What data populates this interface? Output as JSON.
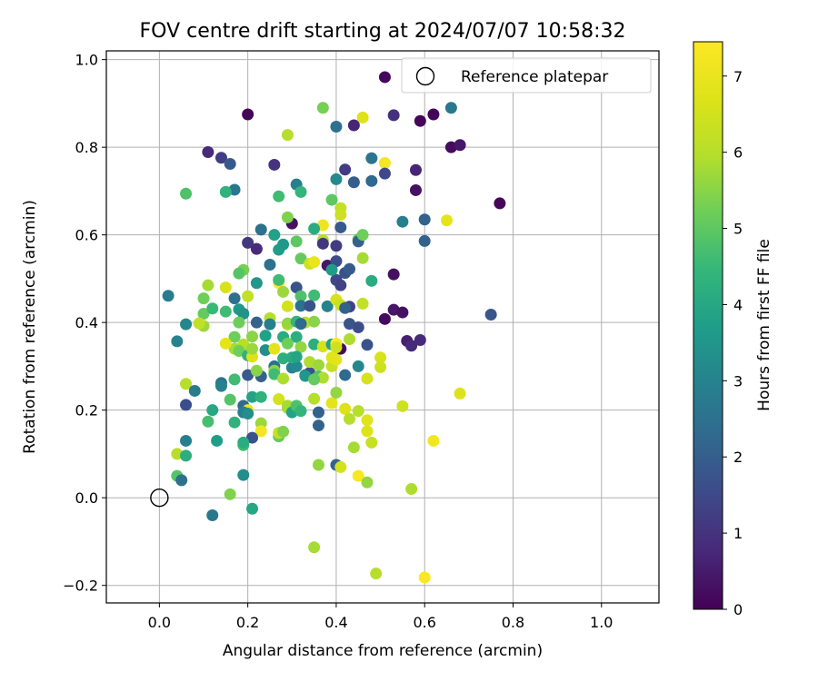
{
  "chart_data": {
    "type": "scatter",
    "title": "FOV centre drift starting at 2024/07/07 10:58:32",
    "xlabel": "Angular distance from reference (arcmin)",
    "ylabel": "Rotation from reference (arcmin)",
    "xlim": [
      -0.12,
      1.13
    ],
    "ylim": [
      -0.24,
      1.02
    ],
    "xticks": [
      0.0,
      0.2,
      0.4,
      0.6,
      0.8,
      1.0
    ],
    "xtick_labels": [
      "0.0",
      "0.2",
      "0.4",
      "0.6",
      "0.8",
      "1.0"
    ],
    "yticks": [
      -0.2,
      0.0,
      0.2,
      0.4,
      0.6,
      0.8,
      1.0
    ],
    "ytick_labels": [
      "−0.2",
      "0.0",
      "0.2",
      "0.4",
      "0.6",
      "0.8",
      "1.0"
    ],
    "grid": true,
    "legend": {
      "placement": "top-right",
      "label": "Reference platepar"
    },
    "reference_point": {
      "x": 0.0,
      "y": 0.0
    },
    "colorbar": {
      "label": "Hours from first FF file",
      "colormap": "viridis",
      "range": [
        0,
        7.45
      ],
      "ticks": [
        0,
        1,
        2,
        3,
        4,
        5,
        6,
        7
      ],
      "tick_labels": [
        "0",
        "1",
        "2",
        "3",
        "4",
        "5",
        "6",
        "7"
      ]
    },
    "points": [
      [
        0.51,
        0.96,
        0.1
      ],
      [
        0.2,
        0.875,
        0.1
      ],
      [
        0.59,
        0.86,
        0.1
      ],
      [
        0.62,
        0.875,
        0.1
      ],
      [
        0.66,
        0.8,
        0.2
      ],
      [
        0.68,
        0.805,
        0.4
      ],
      [
        0.77,
        0.672,
        0.1
      ],
      [
        0.53,
        0.873,
        0.9
      ],
      [
        0.44,
        0.85,
        0.7
      ],
      [
        0.66,
        0.89,
        2.7
      ],
      [
        0.4,
        0.847,
        2.5
      ],
      [
        0.37,
        0.89,
        5.3
      ],
      [
        0.46,
        0.868,
        6.7
      ],
      [
        0.29,
        0.828,
        6.0
      ],
      [
        0.11,
        0.789,
        0.8
      ],
      [
        0.14,
        0.776,
        1.2
      ],
      [
        0.16,
        0.762,
        1.9
      ],
      [
        0.26,
        0.76,
        1.0
      ],
      [
        0.42,
        0.749,
        1.2
      ],
      [
        0.48,
        0.775,
        2.6
      ],
      [
        0.51,
        0.764,
        7.3
      ],
      [
        0.58,
        0.748,
        0.7
      ],
      [
        0.58,
        0.702,
        0.3
      ],
      [
        0.51,
        0.74,
        1.5
      ],
      [
        0.44,
        0.72,
        2.0
      ],
      [
        0.48,
        0.723,
        2.3
      ],
      [
        0.4,
        0.727,
        3.2
      ],
      [
        0.31,
        0.715,
        2.9
      ],
      [
        0.17,
        0.703,
        2.6
      ],
      [
        0.15,
        0.698,
        4.3
      ],
      [
        0.06,
        0.694,
        4.8
      ],
      [
        0.27,
        0.688,
        4.6
      ],
      [
        0.32,
        0.698,
        4.4
      ],
      [
        0.39,
        0.68,
        5.0
      ],
      [
        0.41,
        0.661,
        6.2
      ],
      [
        0.41,
        0.646,
        6.4
      ],
      [
        0.3,
        0.626,
        0.3
      ],
      [
        0.29,
        0.64,
        5.4
      ],
      [
        0.37,
        0.622,
        7.1
      ],
      [
        0.41,
        0.617,
        1.9
      ],
      [
        0.35,
        0.614,
        4.1
      ],
      [
        0.23,
        0.612,
        2.5
      ],
      [
        0.26,
        0.6,
        3.8
      ],
      [
        0.27,
        0.566,
        3.7
      ],
      [
        0.22,
        0.568,
        0.8
      ],
      [
        0.2,
        0.582,
        1.1
      ],
      [
        0.28,
        0.578,
        3.6
      ],
      [
        0.31,
        0.585,
        5.0
      ],
      [
        0.37,
        0.588,
        6.0
      ],
      [
        0.37,
        0.58,
        1.1
      ],
      [
        0.4,
        0.575,
        1.2
      ],
      [
        0.45,
        0.59,
        5.1
      ],
      [
        0.45,
        0.585,
        2.1
      ],
      [
        0.46,
        0.6,
        5.2
      ],
      [
        0.55,
        0.63,
        2.9
      ],
      [
        0.6,
        0.635,
        2.1
      ],
      [
        0.6,
        0.586,
        2.1
      ],
      [
        0.65,
        0.633,
        6.9
      ],
      [
        0.32,
        0.546,
        5.1
      ],
      [
        0.34,
        0.534,
        6.4
      ],
      [
        0.35,
        0.538,
        7.0
      ],
      [
        0.38,
        0.53,
        0.4
      ],
      [
        0.4,
        0.54,
        1.6
      ],
      [
        0.42,
        0.513,
        1.7
      ],
      [
        0.43,
        0.522,
        1.9
      ],
      [
        0.46,
        0.547,
        5.8
      ],
      [
        0.53,
        0.51,
        0.3
      ],
      [
        0.25,
        0.532,
        2.5
      ],
      [
        0.19,
        0.52,
        5.3
      ],
      [
        0.18,
        0.512,
        4.9
      ],
      [
        0.22,
        0.49,
        3.5
      ],
      [
        0.27,
        0.49,
        7.5
      ],
      [
        0.27,
        0.497,
        4.6
      ],
      [
        0.31,
        0.48,
        1.7
      ],
      [
        0.4,
        0.497,
        1.5
      ],
      [
        0.41,
        0.485,
        1.3
      ],
      [
        0.39,
        0.52,
        3.7
      ],
      [
        0.48,
        0.495,
        4.1
      ],
      [
        0.11,
        0.485,
        5.8
      ],
      [
        0.1,
        0.455,
        5.2
      ],
      [
        0.15,
        0.48,
        6.6
      ],
      [
        0.02,
        0.461,
        2.8
      ],
      [
        0.17,
        0.455,
        2.5
      ],
      [
        0.2,
        0.46,
        6.2
      ],
      [
        0.28,
        0.47,
        5.7
      ],
      [
        0.32,
        0.46,
        4.8
      ],
      [
        0.35,
        0.462,
        4.6
      ],
      [
        0.32,
        0.438,
        2.5
      ],
      [
        0.29,
        0.437,
        6.5
      ],
      [
        0.34,
        0.438,
        1.7
      ],
      [
        0.38,
        0.437,
        3.0
      ],
      [
        0.4,
        0.452,
        6.6
      ],
      [
        0.41,
        0.44,
        6.3
      ],
      [
        0.43,
        0.436,
        1.3
      ],
      [
        0.42,
        0.433,
        2.1
      ],
      [
        0.46,
        0.443,
        6.2
      ],
      [
        0.51,
        0.408,
        0.2
      ],
      [
        0.53,
        0.429,
        0.4
      ],
      [
        0.55,
        0.423,
        0.3
      ],
      [
        0.75,
        0.418,
        1.8
      ],
      [
        0.18,
        0.43,
        3.6
      ],
      [
        0.15,
        0.425,
        4.6
      ],
      [
        0.19,
        0.42,
        3.4
      ],
      [
        0.1,
        0.42,
        5.1
      ],
      [
        0.12,
        0.432,
        4.5
      ],
      [
        0.06,
        0.396,
        3.1
      ],
      [
        0.1,
        0.392,
        5.7
      ],
      [
        0.09,
        0.398,
        6.2
      ],
      [
        0.18,
        0.4,
        5.2
      ],
      [
        0.22,
        0.4,
        2.1
      ],
      [
        0.25,
        0.41,
        6.0
      ],
      [
        0.25,
        0.396,
        2.9
      ],
      [
        0.29,
        0.395,
        6.4
      ],
      [
        0.29,
        0.398,
        5.6
      ],
      [
        0.31,
        0.402,
        4.4
      ],
      [
        0.33,
        0.4,
        6.1
      ],
      [
        0.32,
        0.397,
        2.3
      ],
      [
        0.35,
        0.402,
        5.5
      ],
      [
        0.43,
        0.397,
        1.8
      ],
      [
        0.45,
        0.389,
        1.6
      ],
      [
        0.17,
        0.367,
        5.2
      ],
      [
        0.21,
        0.368,
        5.5
      ],
      [
        0.19,
        0.35,
        6.0
      ],
      [
        0.17,
        0.34,
        5.8
      ],
      [
        0.15,
        0.352,
        6.9
      ],
      [
        0.24,
        0.37,
        3.8
      ],
      [
        0.28,
        0.367,
        4.1
      ],
      [
        0.31,
        0.367,
        4.2
      ],
      [
        0.29,
        0.352,
        5.2
      ],
      [
        0.32,
        0.344,
        5.6
      ],
      [
        0.35,
        0.35,
        4.2
      ],
      [
        0.37,
        0.345,
        6.6
      ],
      [
        0.39,
        0.35,
        3.8
      ],
      [
        0.4,
        0.345,
        7.2
      ],
      [
        0.41,
        0.34,
        0.2
      ],
      [
        0.4,
        0.352,
        7.4
      ],
      [
        0.4,
        0.343,
        6.4
      ],
      [
        0.43,
        0.362,
        5.9
      ],
      [
        0.47,
        0.349,
        1.7
      ],
      [
        0.56,
        0.358,
        0.6
      ],
      [
        0.57,
        0.347,
        0.8
      ],
      [
        0.59,
        0.36,
        0.8
      ],
      [
        0.04,
        0.357,
        3.0
      ],
      [
        0.18,
        0.335,
        5.2
      ],
      [
        0.2,
        0.325,
        4.3
      ],
      [
        0.21,
        0.322,
        6.7
      ],
      [
        0.21,
        0.34,
        5.7
      ],
      [
        0.24,
        0.337,
        3.3
      ],
      [
        0.26,
        0.34,
        6.9
      ],
      [
        0.26,
        0.3,
        2.5
      ],
      [
        0.28,
        0.318,
        4.2
      ],
      [
        0.3,
        0.297,
        3.0
      ],
      [
        0.31,
        0.3,
        3.2
      ],
      [
        0.3,
        0.32,
        4.1
      ],
      [
        0.31,
        0.322,
        3.9
      ],
      [
        0.33,
        0.28,
        2.6
      ],
      [
        0.34,
        0.285,
        1.7
      ],
      [
        0.33,
        0.278,
        3.5
      ],
      [
        0.34,
        0.31,
        5.9
      ],
      [
        0.36,
        0.303,
        5.7
      ],
      [
        0.36,
        0.277,
        4.8
      ],
      [
        0.37,
        0.274,
        5.9
      ],
      [
        0.39,
        0.3,
        6.3
      ],
      [
        0.4,
        0.315,
        6.9
      ],
      [
        0.39,
        0.32,
        6.8
      ],
      [
        0.42,
        0.28,
        2.3
      ],
      [
        0.45,
        0.3,
        3.1
      ],
      [
        0.47,
        0.272,
        6.6
      ],
      [
        0.5,
        0.32,
        6.6
      ],
      [
        0.5,
        0.298,
        6.4
      ],
      [
        0.06,
        0.26,
        6.0
      ],
      [
        0.08,
        0.244,
        2.8
      ],
      [
        0.14,
        0.262,
        2.5
      ],
      [
        0.14,
        0.255,
        3.0
      ],
      [
        0.17,
        0.27,
        4.6
      ],
      [
        0.2,
        0.28,
        1.9
      ],
      [
        0.23,
        0.277,
        2.1
      ],
      [
        0.22,
        0.29,
        5.5
      ],
      [
        0.26,
        0.29,
        5.5
      ],
      [
        0.26,
        0.282,
        4.6
      ],
      [
        0.28,
        0.272,
        5.9
      ],
      [
        0.35,
        0.27,
        5.1
      ],
      [
        0.06,
        0.212,
        1.6
      ],
      [
        0.12,
        0.2,
        4.0
      ],
      [
        0.16,
        0.224,
        4.9
      ],
      [
        0.19,
        0.21,
        2.3
      ],
      [
        0.21,
        0.23,
        3.9
      ],
      [
        0.2,
        0.2,
        7.0
      ],
      [
        0.23,
        0.23,
        4.3
      ],
      [
        0.27,
        0.225,
        6.5
      ],
      [
        0.29,
        0.21,
        5.8
      ],
      [
        0.29,
        0.205,
        5.8
      ],
      [
        0.3,
        0.195,
        3.9
      ],
      [
        0.31,
        0.21,
        4.8
      ],
      [
        0.32,
        0.198,
        4.4
      ],
      [
        0.35,
        0.226,
        6.0
      ],
      [
        0.39,
        0.216,
        6.9
      ],
      [
        0.4,
        0.24,
        5.6
      ],
      [
        0.42,
        0.203,
        6.7
      ],
      [
        0.43,
        0.18,
        6.0
      ],
      [
        0.36,
        0.195,
        2.1
      ],
      [
        0.36,
        0.165,
        2.1
      ],
      [
        0.45,
        0.198,
        6.0
      ],
      [
        0.47,
        0.177,
        6.8
      ],
      [
        0.47,
        0.152,
        6.7
      ],
      [
        0.48,
        0.126,
        6.3
      ],
      [
        0.55,
        0.209,
        6.4
      ],
      [
        0.62,
        0.13,
        7.2
      ],
      [
        0.68,
        0.238,
        6.7
      ],
      [
        0.11,
        0.174,
        4.7
      ],
      [
        0.17,
        0.172,
        4.3
      ],
      [
        0.19,
        0.195,
        2.9
      ],
      [
        0.2,
        0.192,
        3.3
      ],
      [
        0.23,
        0.17,
        5.7
      ],
      [
        0.23,
        0.152,
        7.2
      ],
      [
        0.21,
        0.137,
        1.7
      ],
      [
        0.27,
        0.14,
        5.1
      ],
      [
        0.27,
        0.148,
        6.2
      ],
      [
        0.28,
        0.151,
        5.4
      ],
      [
        0.13,
        0.13,
        3.7
      ],
      [
        0.19,
        0.12,
        4.6
      ],
      [
        0.19,
        0.126,
        4.1
      ],
      [
        0.06,
        0.13,
        2.9
      ],
      [
        0.04,
        0.1,
        6.0
      ],
      [
        0.06,
        0.096,
        4.2
      ],
      [
        0.44,
        0.115,
        5.8
      ],
      [
        0.04,
        0.05,
        4.9
      ],
      [
        0.05,
        0.04,
        2.5
      ],
      [
        0.19,
        0.052,
        3.3
      ],
      [
        0.16,
        0.008,
        5.4
      ],
      [
        0.36,
        0.075,
        5.6
      ],
      [
        0.4,
        0.075,
        2.1
      ],
      [
        0.41,
        0.07,
        6.5
      ],
      [
        0.45,
        0.05,
        7.3
      ],
      [
        0.47,
        0.035,
        5.6
      ],
      [
        0.57,
        0.02,
        5.9
      ],
      [
        0.12,
        -0.04,
        2.7
      ],
      [
        0.21,
        -0.025,
        4.0
      ],
      [
        0.35,
        -0.113,
        5.8
      ],
      [
        0.49,
        -0.173,
        6.0
      ],
      [
        0.6,
        -0.182,
        7.4
      ]
    ]
  }
}
